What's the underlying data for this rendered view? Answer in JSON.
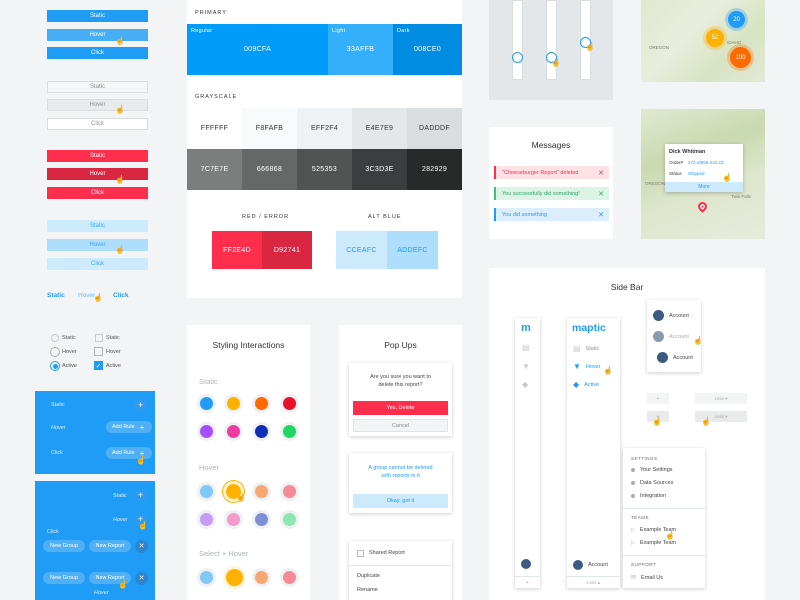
{
  "buttons": {
    "blue": [
      "Static",
      "Hover",
      "Click"
    ],
    "grey": [
      "Static",
      "Hover",
      "Click"
    ],
    "red": [
      "Static",
      "Hover",
      "Click"
    ],
    "light": [
      "Static",
      "Hover",
      "Click"
    ],
    "links": [
      "Static",
      "Hover",
      "Click"
    ]
  },
  "controls": {
    "radio": [
      "Static",
      "Hover",
      "Active"
    ],
    "check": [
      "Static",
      "Hover",
      "Active"
    ]
  },
  "rules": {
    "static": "Static",
    "hover": "Hover",
    "click": "Click",
    "add_rule": "Add Rule"
  },
  "groups": {
    "static": "Static",
    "hover": "Hover",
    "click": "Click",
    "new_group": "New Group",
    "new_report": "New Report"
  },
  "palette": {
    "primary_label": "PRIMARY",
    "primary": [
      {
        "name": "Regular",
        "hex": "009CFA"
      },
      {
        "name": "Light",
        "hex": "33AFFB"
      },
      {
        "name": "Dark",
        "hex": "008CE0"
      }
    ],
    "grayscale_label": "GRAYSCALE",
    "gray_row1": [
      "FFFFFF",
      "F8FAFB",
      "EFF2F4",
      "E4E7E9",
      "DADDDF"
    ],
    "gray_row2": [
      "7C7E7E",
      "666868",
      "525353",
      "3C3D3E",
      "282929"
    ],
    "red_label": "RED / ERROR",
    "red": [
      "FF2E4D",
      "D92741"
    ],
    "altblue_label": "ALT BLUE",
    "altblue": [
      "CCEAFC",
      "ADDEFC"
    ]
  },
  "styling": {
    "title": "Styling Interactions",
    "static": "Static",
    "hover": "Hover",
    "select_hover": "Select + Hover"
  },
  "popups": {
    "title": "Pop Ups",
    "confirm_text": "Are you sure you want to delete this report?",
    "yes": "Yes, Delete",
    "cancel": "Cancel",
    "info_text": "A group cannot be deleted with reports in it",
    "ok": "Okay, got it",
    "menu": [
      "Shared Report",
      "Duplicate",
      "Rename"
    ]
  },
  "messages": {
    "title": "Messages",
    "items": [
      {
        "text": "\"Cheeseburger Report\" deleted",
        "type": "error"
      },
      {
        "text": "You successfully did something!",
        "type": "success"
      },
      {
        "text": "You did something",
        "type": "info"
      }
    ]
  },
  "map1": {
    "clusters": [
      "20",
      "52",
      "100"
    ],
    "labels": [
      "OREGON",
      "IDAHO"
    ]
  },
  "map2": {
    "name": "Dick Whitman",
    "order_label": "Order#",
    "order": "372-3/856-234.23",
    "status_label": "Status",
    "status": "Shipped",
    "more": "More",
    "labels": [
      "OREGON",
      "Twin Falls"
    ]
  },
  "sidebar": {
    "title": "Side Bar",
    "logo_short": "m",
    "logo": "maptic",
    "static": "Static",
    "hover": "Hover",
    "active": "Active",
    "account": "Account",
    "less": "Less",
    "settings_label": "SETTINGS",
    "settings": [
      "Your Settings",
      "Data Sources",
      "Integration"
    ],
    "teams_label": "TEAMS",
    "teams": [
      "Example Team",
      "Example Team"
    ],
    "support_label": "SUPPORT",
    "support": [
      "Email Us"
    ]
  },
  "colors": {
    "primary": "#009CFA",
    "red": "#FF2E4D",
    "dark_red": "#D92741"
  }
}
